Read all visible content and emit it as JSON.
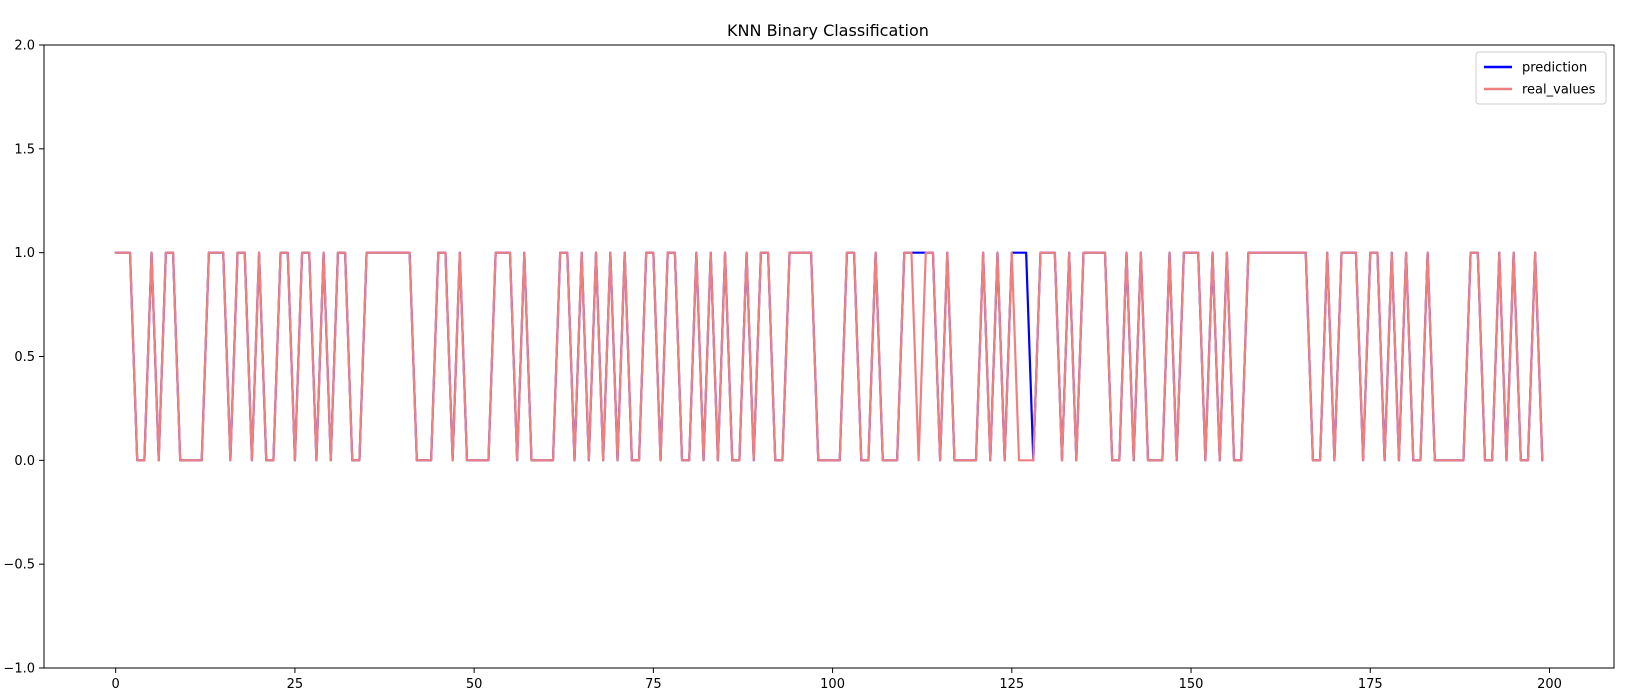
{
  "chart_data": {
    "type": "line",
    "title": "KNN Binary Classification",
    "xlabel": "",
    "ylabel": "",
    "xlim": [
      -10,
      209
    ],
    "ylim": [
      -1.0,
      2.0
    ],
    "xticks": [
      0,
      25,
      50,
      75,
      100,
      125,
      150,
      175,
      200
    ],
    "xtick_labels": [
      "0",
      "25",
      "50",
      "75",
      "100",
      "125",
      "150",
      "175",
      "200"
    ],
    "yticks": [
      -1.0,
      -0.5,
      0.0,
      0.5,
      1.0,
      1.5,
      2.0
    ],
    "ytick_labels": [
      "−1.0",
      "−0.5",
      "0.0",
      "0.5",
      "1.0",
      "1.5",
      "2.0"
    ],
    "grid": false,
    "legend_position": "top-right",
    "x": [
      0,
      1,
      2,
      3,
      4,
      5,
      6,
      7,
      8,
      9,
      10,
      11,
      12,
      13,
      14,
      15,
      16,
      17,
      18,
      19,
      20,
      21,
      22,
      23,
      24,
      25,
      26,
      27,
      28,
      29,
      30,
      31,
      32,
      33,
      34,
      35,
      36,
      37,
      38,
      39,
      40,
      41,
      42,
      43,
      44,
      45,
      46,
      47,
      48,
      49,
      50,
      51,
      52,
      53,
      54,
      55,
      56,
      57,
      58,
      59,
      60,
      61,
      62,
      63,
      64,
      65,
      66,
      67,
      68,
      69,
      70,
      71,
      72,
      73,
      74,
      75,
      76,
      77,
      78,
      79,
      80,
      81,
      82,
      83,
      84,
      85,
      86,
      87,
      88,
      89,
      90,
      91,
      92,
      93,
      94,
      95,
      96,
      97,
      98,
      99,
      100,
      101,
      102,
      103,
      104,
      105,
      106,
      107,
      108,
      109,
      110,
      111,
      112,
      113,
      114,
      115,
      116,
      117,
      118,
      119,
      120,
      121,
      122,
      123,
      124,
      125,
      126,
      127,
      128,
      129,
      130,
      131,
      132,
      133,
      134,
      135,
      136,
      137,
      138,
      139,
      140,
      141,
      142,
      143,
      144,
      145,
      146,
      147,
      148,
      149,
      150,
      151,
      152,
      153,
      154,
      155,
      156,
      157,
      158,
      159,
      160,
      161,
      162,
      163,
      164,
      165,
      166,
      167,
      168,
      169,
      170,
      171,
      172,
      173,
      174,
      175,
      176,
      177,
      178,
      179,
      180,
      181,
      182,
      183,
      184,
      185,
      186,
      187,
      188,
      189,
      190,
      191,
      192,
      193,
      194,
      195,
      196,
      197,
      198,
      199
    ],
    "series": [
      {
        "name": "prediction",
        "color": "#0000ff",
        "values": [
          1,
          1,
          1,
          0,
          0,
          1,
          0,
          1,
          1,
          0,
          0,
          0,
          0,
          1,
          1,
          1,
          0,
          1,
          1,
          0,
          1,
          0,
          0,
          1,
          1,
          0,
          1,
          1,
          0,
          1,
          0,
          1,
          1,
          0,
          0,
          1,
          1,
          1,
          1,
          1,
          1,
          1,
          0,
          0,
          0,
          1,
          1,
          0,
          1,
          0,
          0,
          0,
          0,
          1,
          1,
          1,
          0,
          1,
          0,
          0,
          0,
          0,
          1,
          1,
          0,
          1,
          0,
          1,
          0,
          1,
          0,
          1,
          0,
          0,
          1,
          1,
          0,
          1,
          1,
          0,
          0,
          1,
          0,
          1,
          0,
          1,
          0,
          0,
          1,
          0,
          1,
          1,
          0,
          0,
          1,
          1,
          1,
          1,
          0,
          0,
          0,
          0,
          1,
          1,
          0,
          0,
          1,
          0,
          0,
          0,
          1,
          1,
          1,
          1,
          1,
          0,
          1,
          0,
          0,
          0,
          0,
          1,
          0,
          1,
          0,
          1,
          1,
          1,
          0,
          1,
          1,
          1,
          0,
          1,
          0,
          1,
          1,
          1,
          1,
          0,
          0,
          1,
          0,
          1,
          0,
          0,
          0,
          1,
          0,
          1,
          1,
          1,
          0,
          1,
          0,
          1,
          0,
          0,
          1,
          1,
          1,
          1,
          1,
          1,
          1,
          1,
          1,
          0,
          0,
          1,
          0,
          1,
          1,
          1,
          0,
          1,
          1,
          0,
          1,
          0,
          1,
          0,
          0,
          1,
          0,
          0,
          0,
          0,
          0,
          1,
          1,
          0,
          0,
          1,
          0,
          1,
          0,
          0,
          1,
          0
        ]
      },
      {
        "name": "real_values",
        "color": "#f08080",
        "values": [
          1,
          1,
          1,
          0,
          0,
          1,
          0,
          1,
          1,
          0,
          0,
          0,
          0,
          1,
          1,
          1,
          0,
          1,
          1,
          0,
          1,
          0,
          0,
          1,
          1,
          0,
          1,
          1,
          0,
          1,
          0,
          1,
          1,
          0,
          0,
          1,
          1,
          1,
          1,
          1,
          1,
          1,
          0,
          0,
          0,
          1,
          1,
          0,
          1,
          0,
          0,
          0,
          0,
          1,
          1,
          1,
          0,
          1,
          0,
          0,
          0,
          0,
          1,
          1,
          0,
          1,
          0,
          1,
          0,
          1,
          0,
          1,
          0,
          0,
          1,
          1,
          0,
          1,
          1,
          0,
          0,
          1,
          0,
          1,
          0,
          1,
          0,
          0,
          1,
          0,
          1,
          1,
          0,
          0,
          1,
          1,
          1,
          1,
          0,
          0,
          0,
          0,
          1,
          1,
          0,
          0,
          1,
          0,
          0,
          0,
          1,
          1,
          0,
          1,
          1,
          0,
          1,
          0,
          0,
          0,
          0,
          1,
          0,
          1,
          0,
          1,
          0,
          0,
          0,
          1,
          1,
          1,
          0,
          1,
          0,
          1,
          1,
          1,
          1,
          0,
          0,
          1,
          0,
          1,
          0,
          0,
          0,
          1,
          0,
          1,
          1,
          1,
          0,
          1,
          0,
          1,
          0,
          0,
          1,
          1,
          1,
          1,
          1,
          1,
          1,
          1,
          1,
          0,
          0,
          1,
          0,
          1,
          1,
          1,
          0,
          1,
          1,
          0,
          1,
          0,
          1,
          0,
          0,
          1,
          0,
          0,
          0,
          0,
          0,
          1,
          1,
          0,
          0,
          1,
          0,
          1,
          0,
          0,
          1,
          0
        ]
      }
    ]
  }
}
